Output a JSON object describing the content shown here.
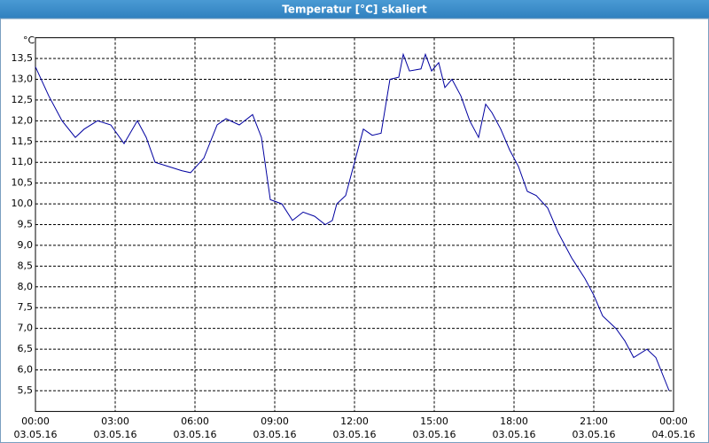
{
  "chart_data": {
    "type": "line",
    "title": "Temperatur [°C] skaliert",
    "y_unit": "°C",
    "series": [
      {
        "color": "#0000a0",
        "x": [
          "03.05.16 00:00",
          "03.05.16 00:30",
          "03.05.16 01:00",
          "03.05.16 01:30",
          "03.05.16 01:50",
          "03.05.16 02:20",
          "03.05.16 02:50",
          "03.05.16 03:20",
          "03.05.16 03:50",
          "03.05.16 04:10",
          "03.05.16 04:30",
          "03.05.16 05:00",
          "03.05.16 05:30",
          "03.05.16 05:50",
          "03.05.16 06:20",
          "03.05.16 06:50",
          "03.05.16 07:10",
          "03.05.16 07:40",
          "03.05.16 08:10",
          "03.05.16 08:30",
          "03.05.16 08:50",
          "03.05.16 09:16",
          "03.05.16 09:40",
          "03.05.16 10:04",
          "03.05.16 10:30",
          "03.05.16 10:54",
          "03.05.16 11:10",
          "03.05.16 11:20",
          "03.05.16 11:40",
          "03.05.16 12:00",
          "03.05.16 12:20",
          "03.05.16 12:40",
          "03.05.16 13:00",
          "03.05.16 13:20",
          "03.05.16 13:40",
          "03.05.16 13:50",
          "03.05.16 14:04",
          "03.05.16 14:30",
          "03.05.16 14:40",
          "03.05.16 14:54",
          "03.05.16 15:10",
          "03.05.16 15:24",
          "03.05.16 15:40",
          "03.05.16 16:00",
          "03.05.16 16:20",
          "03.05.16 16:40",
          "03.05.16 16:56",
          "03.05.16 17:10",
          "03.05.16 17:30",
          "03.05.16 17:50",
          "03.05.16 18:10",
          "03.05.16 18:30",
          "03.05.16 18:50",
          "03.05.16 19:16",
          "03.05.16 19:40",
          "03.05.16 20:10",
          "03.05.16 20:40",
          "03.05.16 21:00",
          "03.05.16 21:20",
          "03.05.16 21:50",
          "03.05.16 22:10",
          "03.05.16 22:30",
          "03.05.16 23:00",
          "03.05.16 23:20",
          "03.05.16 23:50"
        ],
        "values": [
          13.3,
          12.6,
          12.0,
          11.6,
          11.8,
          12.0,
          11.9,
          11.45,
          12.0,
          11.6,
          11.0,
          10.9,
          10.8,
          10.75,
          11.1,
          11.9,
          12.05,
          11.9,
          12.15,
          11.6,
          10.1,
          10.0,
          9.6,
          9.8,
          9.7,
          9.5,
          9.6,
          10.0,
          10.2,
          11.0,
          11.8,
          11.65,
          11.7,
          13.0,
          13.05,
          13.6,
          13.2,
          13.25,
          13.6,
          13.2,
          13.4,
          12.8,
          13.0,
          12.6,
          12.0,
          11.6,
          12.4,
          12.2,
          11.8,
          11.3,
          10.9,
          10.3,
          10.2,
          9.9,
          9.3,
          8.7,
          8.2,
          7.8,
          7.3,
          7.0,
          6.7,
          6.3,
          6.5,
          6.3,
          5.5
        ]
      }
    ],
    "xlim": [
      "03.05.16 00:00",
      "04.05.16 00:00"
    ],
    "xticks": [
      {
        "time": "00:00",
        "date": "03.05.16"
      },
      {
        "time": "03:00",
        "date": "03.05.16"
      },
      {
        "time": "06:00",
        "date": "03.05.16"
      },
      {
        "time": "09:00",
        "date": "03.05.16"
      },
      {
        "time": "12:00",
        "date": "03.05.16"
      },
      {
        "time": "15:00",
        "date": "03.05.16"
      },
      {
        "time": "18:00",
        "date": "03.05.16"
      },
      {
        "time": "21:00",
        "date": "03.05.16"
      },
      {
        "time": "00:00",
        "date": "04.05.16"
      }
    ],
    "ylim": [
      5.0,
      14.0
    ],
    "yticks": [
      {
        "value": 5.5,
        "label": "5,5"
      },
      {
        "value": 6.0,
        "label": "6,0"
      },
      {
        "value": 6.5,
        "label": "6,5"
      },
      {
        "value": 7.0,
        "label": "7,0"
      },
      {
        "value": 7.5,
        "label": "7,5"
      },
      {
        "value": 8.0,
        "label": "8,0"
      },
      {
        "value": 8.5,
        "label": "8,5"
      },
      {
        "value": 9.0,
        "label": "9,0"
      },
      {
        "value": 9.5,
        "label": "9,5"
      },
      {
        "value": 10.0,
        "label": "10,0"
      },
      {
        "value": 10.5,
        "label": "10,5"
      },
      {
        "value": 11.0,
        "label": "11,0"
      },
      {
        "value": 11.5,
        "label": "11,5"
      },
      {
        "value": 12.0,
        "label": "12,0"
      },
      {
        "value": 12.5,
        "label": "12,5"
      },
      {
        "value": 13.0,
        "label": "13,0"
      },
      {
        "value": 13.5,
        "label": "13,5"
      }
    ],
    "grid": true
  }
}
